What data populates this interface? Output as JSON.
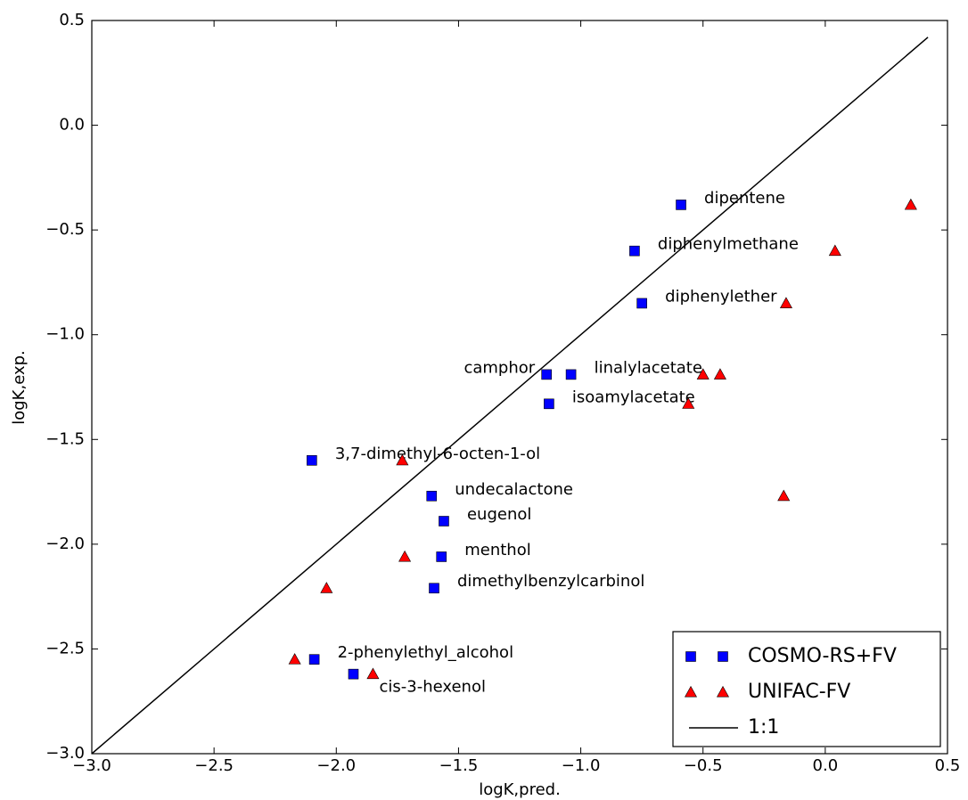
{
  "chart_data": {
    "type": "scatter",
    "xlabel": "logK,pred.",
    "ylabel": "logK,exp.",
    "xlim": [
      -3.0,
      0.5
    ],
    "ylim": [
      -3.0,
      0.5
    ],
    "xticks": [
      {
        "value": -3.0,
        "label": "−3.0"
      },
      {
        "value": -2.5,
        "label": "−2.5"
      },
      {
        "value": -2.0,
        "label": "−2.0"
      },
      {
        "value": -1.5,
        "label": "−1.5"
      },
      {
        "value": -1.0,
        "label": "−1.0"
      },
      {
        "value": -0.5,
        "label": "−0.5"
      },
      {
        "value": 0.0,
        "label": "0.0"
      },
      0.5
    ],
    "yticks": [
      {
        "value": -3.0,
        "label": "−3.0"
      },
      {
        "value": -2.5,
        "label": "−2.5"
      },
      {
        "value": -2.0,
        "label": "−2.0"
      },
      {
        "value": -1.5,
        "label": "−1.5"
      },
      {
        "value": -1.0,
        "label": "−1.0"
      },
      {
        "value": -0.5,
        "label": "−0.5"
      },
      {
        "value": 0.0,
        "label": "0.0"
      },
      0.5
    ],
    "legend": "lower right",
    "series": [
      {
        "name": "COSMO-RS+FV",
        "color": "#0000ff",
        "marker": "square",
        "x": [
          -0.59,
          -0.78,
          -0.75,
          -1.14,
          -1.04,
          -1.13,
          -2.1,
          -1.61,
          -1.56,
          -1.57,
          -1.6,
          -2.09,
          -1.93
        ],
        "values": [
          -0.38,
          -0.6,
          -0.85,
          -1.19,
          -1.19,
          -1.33,
          -1.6,
          -1.77,
          -1.89,
          -2.06,
          -2.21,
          -2.55,
          -2.62
        ],
        "labels": [
          "dipentene",
          "diphenylmethane",
          "diphenylether",
          "camphor",
          "linalylacetate",
          "isoamylacetate",
          "3,7-dimethyl-6-octen-1-ol",
          "undecalactone",
          "eugenol",
          "menthol",
          "dimethylbenzylcarbinol",
          "2-phenylethyl_alcohol",
          "cis-3-hexenol"
        ]
      },
      {
        "name": "UNIFAC-FV",
        "color": "#ff0000",
        "marker": "triangle",
        "x": [
          0.35,
          0.04,
          -0.16,
          -0.5,
          -0.43,
          -0.56,
          -1.73,
          -0.17,
          -1.72,
          -2.04,
          -2.17,
          -1.85
        ],
        "values": [
          -0.38,
          -0.6,
          -0.85,
          -1.19,
          -1.19,
          -1.33,
          -1.6,
          -1.77,
          -2.06,
          -2.21,
          -2.55,
          -2.62
        ]
      },
      {
        "name": "1:1",
        "color": "#000000",
        "marker": "line",
        "x": [
          -3.0,
          0.42
        ],
        "values": [
          -3.0,
          0.42
        ]
      }
    ]
  }
}
